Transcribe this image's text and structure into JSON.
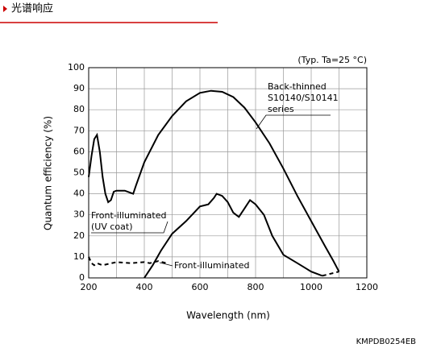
{
  "header": {
    "title": "光谱响应"
  },
  "footer": {
    "code": "KMPDB0254EB"
  },
  "chart_data": {
    "type": "line",
    "note": "(Typ. Ta=25 °C)",
    "xlabel": "Wavelength (nm)",
    "ylabel": "Quantum efficiency (%)",
    "xlim": [
      200,
      1200
    ],
    "ylim": [
      0,
      100
    ],
    "xticks": [
      200,
      400,
      600,
      800,
      1000,
      1200
    ],
    "x_minor_ticks": [
      300,
      500,
      700,
      900,
      1100
    ],
    "yticks": [
      0,
      10,
      20,
      30,
      40,
      50,
      60,
      70,
      80,
      90,
      100
    ],
    "grid": true,
    "series": [
      {
        "color": "#000000",
        "dash": false,
        "x": [
          200,
          210,
          220,
          230,
          240,
          250,
          260,
          270,
          280,
          290,
          300,
          330,
          350,
          360,
          370,
          400,
          450,
          500,
          550,
          600,
          640,
          680,
          720,
          760,
          800,
          850,
          900,
          950,
          1000,
          1050,
          1080,
          1100
        ],
        "values": [
          48,
          58,
          66,
          68,
          60,
          48,
          40,
          36,
          37,
          41,
          41.5,
          41.5,
          40.5,
          40,
          44,
          55,
          68,
          77,
          84,
          88,
          89,
          88.5,
          86,
          81,
          74,
          64,
          52,
          39,
          27,
          15,
          8,
          3
        ]
      },
      {
        "color": "#000000",
        "dash": false,
        "x": [
          400,
          430,
          460,
          500,
          550,
          600,
          630,
          650,
          660,
          680,
          700,
          720,
          740,
          760,
          780,
          800,
          830,
          860,
          900,
          950,
          1000,
          1040
        ],
        "values": [
          0,
          6,
          13,
          21,
          27,
          34,
          35,
          38,
          40,
          39,
          36,
          31,
          29,
          33,
          37,
          35,
          30,
          20,
          11,
          7,
          3,
          1
        ]
      },
      {
        "color": "#000000",
        "dash": true,
        "x": [
          200,
          210,
          220,
          230,
          250,
          300,
          350,
          400,
          420,
          450,
          480
        ],
        "values": [
          10,
          7,
          6,
          7,
          6,
          7.5,
          7,
          7.5,
          7,
          8,
          7
        ]
      },
      {
        "color": "#000000",
        "dash": true,
        "x": [
          1040,
          1070,
          1100
        ],
        "values": [
          1,
          2,
          3
        ]
      }
    ],
    "annotations": [
      {
        "lines": [
          "Back-thinned",
          "S10140/S10141",
          "series"
        ]
      },
      {
        "lines": [
          "Front-illuminated",
          "(UV coat)"
        ]
      },
      {
        "lines": [
          "Front-illuminated"
        ]
      }
    ]
  }
}
